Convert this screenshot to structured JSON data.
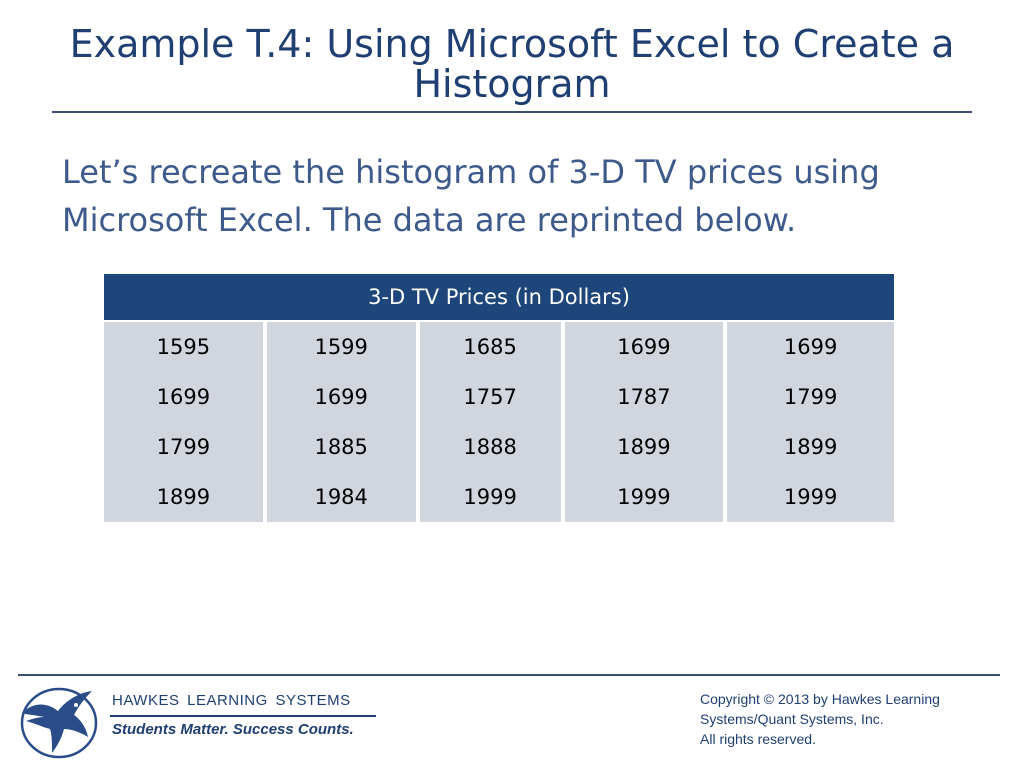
{
  "slide": {
    "title_line1": "Example T.4: Using Microsoft Excel to Create a",
    "title_line2": "Histogram",
    "body_line1": "Let’s recreate the histogram of 3-D TV prices using",
    "body_line2": "Microsoft Excel. The data are reprinted below."
  },
  "table": {
    "header": "3-D TV Prices (in Dollars)",
    "rows": [
      [
        "1595",
        "1599",
        "1685",
        "1699",
        "1699"
      ],
      [
        "1699",
        "1699",
        "1757",
        "1787",
        "1799"
      ],
      [
        "1799",
        "1885",
        "1888",
        "1899",
        "1899"
      ],
      [
        "1899",
        "1984",
        "1999",
        "1999",
        "1999"
      ]
    ]
  },
  "footer": {
    "brand": "HAWKES LEARNING SYSTEMS",
    "tagline": "Students Matter. Success Counts.",
    "copyright_line1": "Copyright © 2013 by Hawkes Learning",
    "copyright_line2": "Systems/Quant Systems, Inc.",
    "copyright_line3": "All rights reserved."
  },
  "colors": {
    "title": "#1f3f72",
    "body_text": "#3d5a8a",
    "table_header": "#1f467a",
    "table_cell": "#d1d5dd"
  },
  "icons": {
    "logo": "eagle-logo-icon"
  }
}
